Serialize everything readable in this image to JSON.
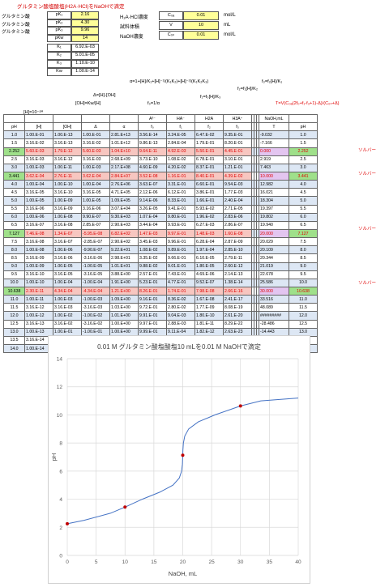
{
  "title": "グルタミン酸塩酸塩(H2A·HCl)をNaOHで滴定",
  "params": {
    "rows": [
      {
        "label": "グルタミン酸",
        "sym": "pK₁",
        "val": "2.16"
      },
      {
        "label": "グルタミン酸",
        "sym": "pK₂",
        "val": "4.30"
      },
      {
        "label": "グルタミン酸",
        "sym": "pK₃",
        "val": "9.96"
      },
      {
        "label": "",
        "sym": "pKw",
        "val": "14"
      }
    ],
    "k_rows": [
      {
        "sym": "K₁",
        "val": "6.92.E-03"
      },
      {
        "sym": "K₂",
        "val": "5.01.E-05"
      },
      {
        "sym": "K₃",
        "val": "1.10.E-10"
      },
      {
        "sym": "Kw",
        "val": "1.00.E-14"
      }
    ]
  },
  "conc": [
    {
      "label": "H₂A·HCl濃度",
      "sym": "C₀ₐ",
      "val": "0.01",
      "unit": "mol/L"
    },
    {
      "label": "試料体積",
      "sym": "V",
      "val": "10",
      "unit": "mL"
    },
    {
      "label": "NaOH濃度",
      "sym": "C₀ₙ",
      "val": "0.01",
      "unit": "mol/L"
    }
  ],
  "formulas": {
    "alpha": "α=1+[H]/K₁+[H]⁻¹/(K₁K₂)+[H]⁻²/(K₁K₂K₃)",
    "f3": "f₃=f₂[H]/K₁",
    "f2": "f₂=f₁[H]/K₂",
    "delta": "Δ=[H]-[OH]",
    "f1": "f₁=f₀[H]/K₃",
    "oh": "[OH]=Kw/[H]",
    "f0": "f₀=1/α",
    "h": "[H]=10⁻ᵖᴴ",
    "t": "T=V(C₀ₐ(2f₀+f₁-f₃+1)-Δ)/(C₀ₙ+Δ)"
  },
  "table": {
    "headers_top": [
      "",
      "",
      "",
      "",
      "",
      "A²⁻",
      "HA⁻",
      "H2A",
      "H3A⁺",
      "NaOH,mL",
      ""
    ],
    "headers": [
      "pH",
      "[H]",
      "[OH]",
      "Δ",
      "α",
      "f₀",
      "f₁",
      "f₂",
      "f₃",
      "T",
      "pH"
    ],
    "rows": [
      {
        "ph": "1.0",
        "h": "1.00.E-01",
        "oh": "1.00.E-13",
        "d": "1.00.E-01",
        "a": "2.81.E+13",
        "f0": "3.56.E-14",
        "f1": "3.24.E-05",
        "f2": "6.47.E-02",
        "f3": "9.35.E-01",
        "t": "-9.032",
        "ph2": "1.0",
        "style": "row-blue"
      },
      {
        "ph": "1.5",
        "h": "3.16.E-02",
        "oh": "3.16.E-13",
        "d": "3.16.E-02",
        "a": "1.01.E+12",
        "f0": "9.86.E-13",
        "f1": "2.84.E-04",
        "f2": "1.79.E-01",
        "f3": "8.20.E-01",
        "t": "-7.166",
        "ph2": "1.5",
        "style": "row-wht"
      },
      {
        "ph": "2.252",
        "h": "5.60.E-03",
        "oh": "1.79.E-12",
        "d": "5.60.E-03",
        "a": "1.04.E+10",
        "f0": "9.64.E-11",
        "f1": "4.92.E-03",
        "f2": "5.50.E-01",
        "f3": "4.45.E-01",
        "t": "0.000",
        "ph2": "2.252",
        "style": "row-blue hl",
        "note": "ソルバー"
      },
      {
        "ph": "2.5",
        "h": "3.16.E-03",
        "oh": "3.16.E-12",
        "d": "3.16.E-03",
        "a": "2.68.E+09",
        "f0": "3.73.E-10",
        "f1": "1.08.E-02",
        "f2": "6.78.E-01",
        "f3": "3.10.E-01",
        "t": "2.919",
        "ph2": "2.5",
        "style": "row-wht"
      },
      {
        "ph": "3.0",
        "h": "1.00.E-03",
        "oh": "1.00.E-11",
        "d": "1.00.E-03",
        "a": "2.17.E+08",
        "f0": "4.60.E-09",
        "f1": "4.20.E-02",
        "f2": "8.37.E-01",
        "f3": "1.21.E-01",
        "t": "7.463",
        "ph2": "3.0",
        "style": "row-blue"
      },
      {
        "ph": "3.441",
        "h": "3.62.E-04",
        "oh": "2.76.E-11",
        "d": "3.62.E-04",
        "a": "2.84.E+07",
        "f0": "3.52.E-08",
        "f1": "1.16.E-01",
        "f2": "8.40.E-01",
        "f3": "4.39.E-02",
        "t": "10.000",
        "ph2": "3.441",
        "style": "row-wht hl",
        "note": "ソルバー"
      },
      {
        "ph": "4.0",
        "h": "1.00.E-04",
        "oh": "1.00.E-10",
        "d": "1.00.E-04",
        "a": "2.76.E+06",
        "f0": "3.63.E-07",
        "f1": "3.31.E-01",
        "f2": "6.60.E-01",
        "f3": "9.54.E-03",
        "t": "12.982",
        "ph2": "4.0",
        "style": "row-blue"
      },
      {
        "ph": "4.5",
        "h": "3.16.E-05",
        "oh": "3.16.E-10",
        "d": "3.16.E-05",
        "a": "4.71.E+05",
        "f0": "2.12.E-06",
        "f1": "6.12.E-01",
        "f2": "3.86.E-01",
        "f3": "1.77.E-03",
        "t": "16.021",
        "ph2": "4.5",
        "style": "row-wht"
      },
      {
        "ph": "5.0",
        "h": "1.00.E-05",
        "oh": "1.00.E-09",
        "d": "1.00.E-05",
        "a": "1.09.E+05",
        "f0": "9.14.E-06",
        "f1": "8.33.E-01",
        "f2": "1.66.E-01",
        "f3": "2.40.E-04",
        "t": "18.304",
        "ph2": "5.0",
        "style": "row-blue"
      },
      {
        "ph": "5.5",
        "h": "3.16.E-06",
        "oh": "3.16.E-09",
        "d": "3.16.E-06",
        "a": "3.07.E+04",
        "f0": "3.26.E-05",
        "f1": "9.41.E-01",
        "f2": "5.93.E-02",
        "f3": "2.71.E-05",
        "t": "19.397",
        "ph2": "5.5",
        "style": "row-wht"
      },
      {
        "ph": "6.0",
        "h": "1.00.E-06",
        "oh": "1.00.E-08",
        "d": "9.90.E-07",
        "a": "9.30.E+03",
        "f0": "1.07.E-04",
        "f1": "9.80.E-01",
        "f2": "1.96.E-02",
        "f3": "2.83.E-06",
        "t": "19.802",
        "ph2": "6.0",
        "style": "row-blue"
      },
      {
        "ph": "6.5",
        "h": "3.16.E-07",
        "oh": "3.16.E-08",
        "d": "2.85.E-07",
        "a": "2.90.E+03",
        "f0": "3.44.E-04",
        "f1": "9.93.E-01",
        "f2": "6.27.E-03",
        "f3": "2.86.E-07",
        "t": "19.940",
        "ph2": "6.5",
        "style": "row-wht"
      },
      {
        "ph": "7.127",
        "h": "7.46.E-08",
        "oh": "1.34.E-07",
        "d": "-5.95.E-08",
        "a": "6.82.E+02",
        "f0": "1.47.E-03",
        "f1": "9.97.E-01",
        "f2": "1.48.E-03",
        "f3": "1.60.E-08",
        "t": "20.000",
        "ph2": "7.127",
        "style": "row-blue hl",
        "note": "ソルバー"
      },
      {
        "ph": "7.5",
        "h": "3.16.E-08",
        "oh": "3.16.E-07",
        "d": "-2.85.E-07",
        "a": "2.90.E+02",
        "f0": "3.45.E-03",
        "f1": "9.96.E-01",
        "f2": "6.28.E-04",
        "f3": "2.87.E-09",
        "t": "20.029",
        "ph2": "7.5",
        "style": "row-wht"
      },
      {
        "ph": "8.0",
        "h": "1.00.E-08",
        "oh": "1.00.E-06",
        "d": "-9.90.E-07",
        "a": "9.22.E+01",
        "f0": "1.08.E-02",
        "f1": "9.89.E-01",
        "f2": "1.97.E-04",
        "f3": "2.85.E-10",
        "t": "20.109",
        "ph2": "8.0",
        "style": "row-blue"
      },
      {
        "ph": "8.5",
        "h": "3.16.E-09",
        "oh": "3.16.E-06",
        "d": "-3.16.E-06",
        "a": "2.98.E+01",
        "f0": "3.35.E-02",
        "f1": "9.66.E-01",
        "f2": "6.10.E-05",
        "f3": "2.79.E-11",
        "t": "20.344",
        "ph2": "8.5",
        "style": "row-wht"
      },
      {
        "ph": "9.0",
        "h": "1.00.E-09",
        "oh": "1.00.E-05",
        "d": "-1.00.E-05",
        "a": "1.01.E+01",
        "f0": "9.88.E-02",
        "f1": "9.01.E-01",
        "f2": "1.80.E-05",
        "f3": "2.60.E-12",
        "t": "21.019",
        "ph2": "9.0",
        "style": "row-blue"
      },
      {
        "ph": "9.5",
        "h": "3.16.E-10",
        "oh": "3.16.E-05",
        "d": "-3.16.E-05",
        "a": "3.88.E+00",
        "f0": "2.57.E-01",
        "f1": "7.43.E-01",
        "f2": "4.69.E-06",
        "f3": "2.14.E-13",
        "t": "22.678",
        "ph2": "9.5",
        "style": "row-wht"
      },
      {
        "ph": "10.0",
        "h": "1.00.E-10",
        "oh": "1.00.E-04",
        "d": "-1.00.E-04",
        "a": "1.91.E+00",
        "f0": "5.23.E-01",
        "f1": "4.77.E-01",
        "f2": "9.52.E-07",
        "f3": "1.38.E-14",
        "t": "25.586",
        "ph2": "10.0",
        "style": "row-blue"
      },
      {
        "ph": "10.638",
        "h": "2.30.E-11",
        "oh": "4.34.E-04",
        "d": "-4.34.E-04",
        "a": "1.21.E+00",
        "f0": "8.26.E-01",
        "f1": "1.74.E-01",
        "f2": "7.98.E-08",
        "f3": "2.66.E-16",
        "t": "30.000",
        "ph2": "10.638",
        "style": "row-wht hl",
        "note": "ソルバー"
      },
      {
        "ph": "11.0",
        "h": "1.00.E-11",
        "oh": "1.00.E-03",
        "d": "-1.00.E-03",
        "a": "1.09.E+00",
        "f0": "9.16.E-01",
        "f1": "8.36.E-02",
        "f2": "1.67.E-08",
        "f3": "2.41.E-17",
        "t": "33.516",
        "ph2": "11.0",
        "style": "row-blue"
      },
      {
        "ph": "11.5",
        "h": "3.16.E-12",
        "oh": "3.16.E-03",
        "d": "-3.16.E-03",
        "a": "1.03.E+00",
        "f0": "9.72.E-01",
        "f1": "2.80.E-02",
        "f2": "1.77.E-09",
        "f3": "8.08.E-19",
        "t": "48.089",
        "ph2": "11.5",
        "style": "row-wht"
      },
      {
        "ph": "12.0",
        "h": "1.00.E-12",
        "oh": "1.00.E-02",
        "d": "-1.00.E-02",
        "a": "1.01.E+00",
        "f0": "9.91.E-01",
        "f1": "9.04.E-03",
        "f2": "1.80.E-10",
        "f3": "2.61.E-20",
        "t": "#########",
        "ph2": "12.0",
        "style": "row-blue"
      },
      {
        "ph": "12.5",
        "h": "3.16.E-13",
        "oh": "3.16.E-02",
        "d": "-3.16.E-02",
        "a": "1.00.E+00",
        "f0": "9.97.E-01",
        "f1": "2.88.E-03",
        "f2": "1.81.E-11",
        "f3": "8.29.E-22",
        "t": "-28.486",
        "ph2": "12.5",
        "style": "row-wht"
      },
      {
        "ph": "13.0",
        "h": "1.00.E-13",
        "oh": "1.00.E-01",
        "d": "-1.00.E-01",
        "a": "1.00.E+00",
        "f0": "9.99.E-01",
        "f1": "9.11.E-04",
        "f2": "1.82.E-12",
        "f3": "2.63.E-23",
        "t": "-14.443",
        "ph2": "13.0",
        "style": "row-blue"
      },
      {
        "ph": "13.5",
        "h": "3.16.E-14",
        "oh": "3.16.E-01",
        "d": "-3.16.E-01",
        "a": "1.00.E+00",
        "f0": "1.00.E+00",
        "f1": "2.88.E-04",
        "f2": "1.82.E-13",
        "f3": "8.32.E-25",
        "t": "-11.306",
        "ph2": "13.5",
        "style": "row-wht"
      },
      {
        "ph": "14.0",
        "h": "1.00.E-14",
        "oh": "1.00.E+00",
        "d": "-1.00.E+00",
        "a": "1.00.E+00",
        "f0": "1.00.E+00",
        "f1": "9.12.E-05",
        "f2": "1.82.E-14",
        "f3": "2.63.E-26",
        "t": "-10.404",
        "ph2": "14.0",
        "style": "row-blue"
      }
    ]
  },
  "chart_data": {
    "type": "line",
    "title": "0.01 M グルタミン酸塩酸塩10 mLを0.01 M NaOHで滴定",
    "xlabel": "NaOH, mL",
    "ylabel": "pH",
    "xlim": [
      0,
      40
    ],
    "ylim": [
      0,
      14
    ],
    "xticks": [
      0,
      5,
      10,
      15,
      20,
      25,
      30,
      35,
      40
    ],
    "yticks": [
      0,
      2,
      4,
      6,
      8,
      10,
      12,
      14
    ],
    "grid": true,
    "line_color": "#4472c4",
    "marker_color": "#c00000",
    "series": [
      {
        "x": [
          0.0,
          2.919,
          7.463,
          10.0,
          12.982,
          16.021,
          18.304,
          19.397,
          19.802,
          19.94,
          20.0,
          20.029,
          20.109,
          20.344,
          21.019,
          22.678,
          25.586,
          30.0,
          33.516,
          40.0
        ],
        "y": [
          2.252,
          2.5,
          3.0,
          3.441,
          4.0,
          4.5,
          5.0,
          5.5,
          6.0,
          6.5,
          7.127,
          7.5,
          8.0,
          8.5,
          9.0,
          9.5,
          10.0,
          10.638,
          11.0,
          11.2
        ]
      }
    ],
    "markers": {
      "x": [
        0,
        10,
        20,
        30
      ],
      "y": [
        2.252,
        3.441,
        7.127,
        10.638
      ]
    }
  }
}
